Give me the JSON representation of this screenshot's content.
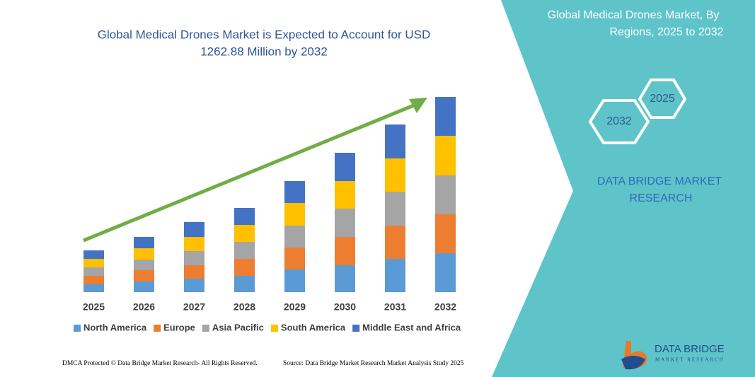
{
  "chart_data": {
    "type": "stacked_bar",
    "title": [
      "Global Medical Drones Market is Expected to Account for USD",
      "1262.88 Million by 2032"
    ],
    "categories": [
      "2025",
      "2026",
      "2027",
      "2028",
      "2029",
      "2030",
      "2031",
      "2032"
    ],
    "series": [
      {
        "name": "North America",
        "color": "#5b9bd5",
        "values": [
          11,
          15,
          19,
          23,
          32,
          38,
          47,
          55
        ]
      },
      {
        "name": "Europe",
        "color": "#ed7d31",
        "values": [
          12,
          16,
          19,
          24,
          31,
          40,
          47,
          55
        ]
      },
      {
        "name": "Asia Pacific",
        "color": "#a5a5a5",
        "values": [
          12,
          15,
          20,
          24,
          31,
          40,
          48,
          55
        ]
      },
      {
        "name": "South America",
        "color": "#ffc000",
        "values": [
          12,
          16,
          20,
          24,
          32,
          39,
          47,
          56
        ]
      },
      {
        "name": "Middle East and Africa",
        "color": "#4472c4",
        "values": [
          12,
          16,
          21,
          24,
          31,
          40,
          48,
          55
        ]
      }
    ],
    "ylim": [
      0,
      280
    ]
  },
  "panel": {
    "title": [
      "Global Medical Drones Market, By",
      "Regions, 2025 to 2032"
    ],
    "hexagons": [
      "2025",
      "2032"
    ],
    "brand": [
      "DATA BRIDGE MARKET",
      "RESEARCH"
    ]
  },
  "logo": {
    "name": "DATA BRIDGE",
    "tagline": "MARKET RESEARCH"
  },
  "footer": {
    "left": "DMCA Protected © Data Bridge Market Research- All Rights Reserved.",
    "right": "Source: Data Bridge Market Research Market Analysis Study 2025"
  }
}
